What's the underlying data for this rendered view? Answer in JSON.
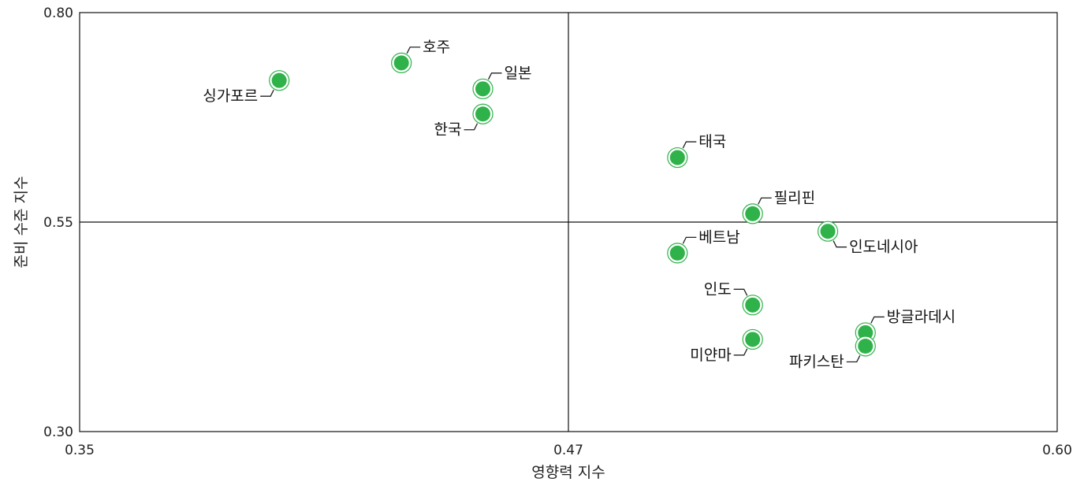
{
  "chart_data": {
    "type": "scatter",
    "xlabel": "영향력 지수",
    "ylabel": "준비 수준 지수",
    "xlim": [
      0.35,
      0.6
    ],
    "ylim": [
      0.3,
      0.8
    ],
    "x_ticks": [
      "0.35",
      "0.47",
      "0.60"
    ],
    "y_ticks": [
      "0.80",
      "0.55",
      "0.30"
    ],
    "x_divider": 0.47,
    "y_divider": 0.55,
    "grid": false,
    "colors": {
      "point_fill": "#2fb24a",
      "point_ring": "#2fb24a"
    },
    "points": [
      {
        "label": "싱가포르",
        "x": 0.399,
        "y": 0.719
      },
      {
        "label": "호주",
        "x": 0.429,
        "y": 0.74
      },
      {
        "label": "일본",
        "x": 0.449,
        "y": 0.709
      },
      {
        "label": "한국",
        "x": 0.449,
        "y": 0.679
      },
      {
        "label": "태국",
        "x": 0.499,
        "y": 0.627
      },
      {
        "label": "필리핀",
        "x": 0.519,
        "y": 0.56
      },
      {
        "label": "인도네시아",
        "x": 0.539,
        "y": 0.539
      },
      {
        "label": "베트남",
        "x": 0.499,
        "y": 0.513
      },
      {
        "label": "인도",
        "x": 0.519,
        "y": 0.451
      },
      {
        "label": "미얀마",
        "x": 0.519,
        "y": 0.41
      },
      {
        "label": "방글라데시",
        "x": 0.549,
        "y": 0.418
      },
      {
        "label": "파키스탄",
        "x": 0.549,
        "y": 0.402
      }
    ]
  }
}
